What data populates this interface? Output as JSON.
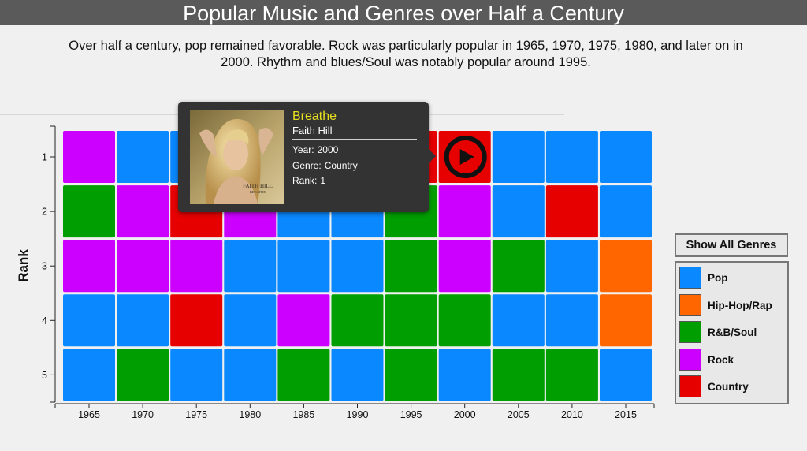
{
  "header": {
    "title": "Popular Music and Genres over Half a Century",
    "subtitle": "Over half a century, pop remained favorable. Rock was particularly popular in 1965, 1970, 1975, 1980, and later on in 2000. Rhythm and blues/Soul was notably popular around 1995."
  },
  "colors": {
    "Pop": "#0a88ff",
    "Hip-Hop/Rap": "#ff6600",
    "R&B/Soul": "#009e00",
    "Rock": "#cc00ff",
    "Country": "#e60000"
  },
  "controls": {
    "show_all_label": "Show All Genres"
  },
  "legend": [
    {
      "name": "Pop"
    },
    {
      "name": "Hip-Hop/Rap"
    },
    {
      "name": "R&B/Soul"
    },
    {
      "name": "Rock"
    },
    {
      "name": "Country"
    }
  ],
  "chart_data": {
    "type": "heatmap",
    "title": "Popular Music and Genres over Half a Century",
    "xlabel": "",
    "ylabel": "Rank",
    "x": [
      "1965",
      "1970",
      "1975",
      "1980",
      "1985",
      "1990",
      "1995",
      "2000",
      "2005",
      "2010",
      "2015"
    ],
    "y": [
      1,
      2,
      3,
      4,
      5
    ],
    "genres": [
      [
        "Rock",
        "Pop",
        "Pop",
        "Pop",
        "Pop",
        "Pop",
        "Country",
        "Country",
        "Pop",
        "Pop",
        "Pop"
      ],
      [
        "R&B/Soul",
        "Rock",
        "Country",
        "Rock",
        "Pop",
        "Pop",
        "R&B/Soul",
        "Rock",
        "Pop",
        "Country",
        "Pop"
      ],
      [
        "Rock",
        "Rock",
        "Rock",
        "Pop",
        "Pop",
        "Pop",
        "R&B/Soul",
        "Rock",
        "R&B/Soul",
        "Pop",
        "Hip-Hop/Rap"
      ],
      [
        "Pop",
        "Pop",
        "Country",
        "Pop",
        "Rock",
        "R&B/Soul",
        "R&B/Soul",
        "R&B/Soul",
        "Pop",
        "Pop",
        "Hip-Hop/Rap"
      ],
      [
        "Pop",
        "R&B/Soul",
        "Pop",
        "Pop",
        "R&B/Soul",
        "Pop",
        "R&B/Soul",
        "Pop",
        "R&B/Soul",
        "R&B/Soul",
        "Pop"
      ]
    ],
    "highlighted": {
      "year": "2000",
      "rank": 1
    }
  },
  "tooltip": {
    "song": "Breathe",
    "artist": "Faith Hill",
    "year_label": "Year:",
    "year": "2000",
    "genre_label": "Genre:",
    "genre": "Country",
    "rank_label": "Rank:",
    "rank": "1",
    "album_art_text": "FAITH HILL",
    "album_art_subtext": "BREATHE",
    "play_icon": "play-icon"
  }
}
